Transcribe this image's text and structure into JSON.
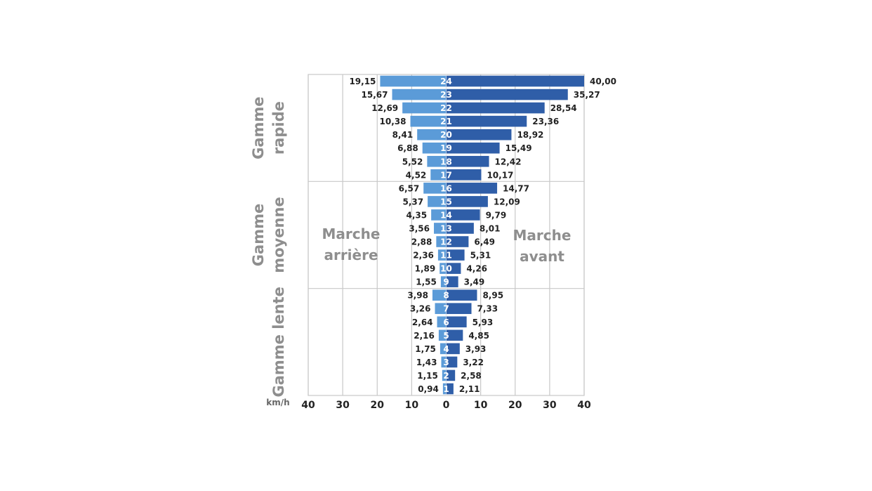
{
  "chart_data": {
    "type": "bar",
    "orientation": "horizontal-diverging",
    "unit_label": "km/h",
    "xlim": [
      -40,
      40
    ],
    "x_ticks": [
      "40",
      "30",
      "20",
      "10",
      "0",
      "10",
      "20",
      "30",
      "40"
    ],
    "colors": {
      "reverse": "#5b9bd8",
      "forward": "#2f5ea8",
      "grid": "#c8c8c8",
      "label_gray": "#8e8e8e"
    },
    "groups": [
      {
        "name": "Gamme rapide",
        "gears": [
          17,
          24
        ]
      },
      {
        "name": "Gamme moyenne",
        "gears": [
          9,
          16
        ]
      },
      {
        "name": "Gamme lente",
        "gears": [
          1,
          8
        ]
      }
    ],
    "direction_labels": {
      "reverse": [
        "Marche",
        "arrière"
      ],
      "forward": [
        "Marche",
        "avant"
      ]
    },
    "series": [
      {
        "name": "Marche arrière",
        "values": [
          19.15,
          15.67,
          12.69,
          10.38,
          8.41,
          6.88,
          5.52,
          4.52,
          6.57,
          5.37,
          4.35,
          3.56,
          2.88,
          2.36,
          1.89,
          1.55,
          3.98,
          3.26,
          2.64,
          2.16,
          1.75,
          1.43,
          1.15,
          0.94
        ],
        "labels": [
          "19,15",
          "15,67",
          "12,69",
          "10,38",
          "8,41",
          "6,88",
          "5,52",
          "4,52",
          "6,57",
          "5,37",
          "4,35",
          "3,56",
          "2,88",
          "2,36",
          "1,89",
          "1,55",
          "3,98",
          "3,26",
          "2,64",
          "2,16",
          "1,75",
          "1,43",
          "1,15",
          "0,94"
        ]
      },
      {
        "name": "Marche avant",
        "values": [
          40.0,
          35.27,
          28.54,
          23.36,
          18.92,
          15.49,
          12.42,
          10.17,
          14.77,
          12.09,
          9.79,
          8.01,
          6.49,
          5.31,
          4.26,
          3.49,
          8.95,
          7.33,
          5.93,
          4.85,
          3.93,
          3.22,
          2.58,
          2.11
        ],
        "labels": [
          "40,00",
          "35,27",
          "28,54",
          "23,36",
          "18,92",
          "15,49",
          "12,42",
          "10,17",
          "14,77",
          "12,09",
          "9,79",
          "8,01",
          "6,49",
          "5,31",
          "4,26",
          "3,49",
          "8,95",
          "7,33",
          "5,93",
          "4,85",
          "3,93",
          "3,22",
          "2,58",
          "2,11"
        ]
      }
    ],
    "categories": [
      "24",
      "23",
      "22",
      "21",
      "20",
      "19",
      "18",
      "17",
      "16",
      "15",
      "14",
      "13",
      "12",
      "11",
      "10",
      "9",
      "8",
      "7",
      "6",
      "5",
      "4",
      "3",
      "2",
      "1"
    ],
    "grid": true
  }
}
